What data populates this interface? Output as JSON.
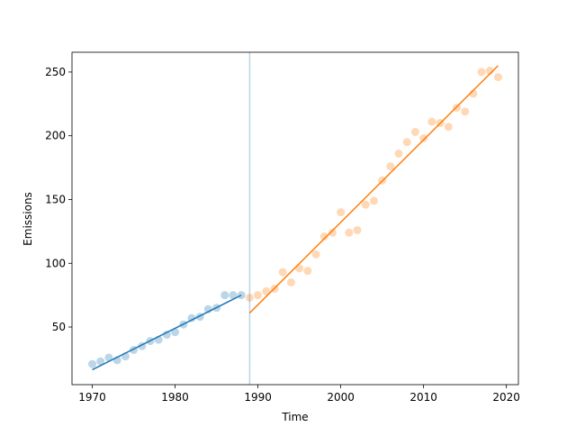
{
  "chart_data": {
    "type": "scatter",
    "xlabel": "Time",
    "ylabel": "Emissions",
    "xlim": [
      1967.55,
      2021.45
    ],
    "ylim": [
      4.8,
      265.5
    ],
    "xticks": [
      1970,
      1980,
      1990,
      2000,
      2010,
      2020
    ],
    "yticks": [
      50,
      100,
      150,
      200,
      250
    ],
    "grid": false,
    "series": [
      {
        "color": "#1f77b4",
        "alpha": 0.3,
        "x": [
          1970,
          1971,
          1972,
          1973,
          1974,
          1975,
          1976,
          1977,
          1978,
          1979,
          1980,
          1981,
          1982,
          1983,
          1984,
          1985,
          1986,
          1987,
          1988
        ],
        "values": [
          21,
          23,
          26,
          24,
          27,
          32,
          35,
          39,
          40,
          44,
          46,
          52,
          57,
          58,
          64,
          65,
          75,
          75,
          75
        ]
      },
      {
        "color": "#ff7f0e",
        "alpha": 0.3,
        "x": [
          1989,
          1990,
          1991,
          1992,
          1993,
          1994,
          1995,
          1996,
          1997,
          1998,
          1999,
          2000,
          2001,
          2002,
          2003,
          2004,
          2005,
          2006,
          2007,
          2008,
          2009,
          2010,
          2011,
          2012,
          2013,
          2014,
          2015,
          2016,
          2017,
          2018,
          2019
        ],
        "values": [
          73,
          75,
          78,
          80,
          93,
          85,
          96,
          94,
          107,
          121,
          124,
          140,
          124,
          126,
          146,
          149,
          165,
          176,
          186,
          195,
          203,
          198,
          211,
          210,
          207,
          222,
          219,
          233,
          250,
          251,
          246
        ]
      }
    ],
    "fit_lines": [
      {
        "color": "#1f77b4",
        "x": [
          1970,
          1988
        ],
        "values": [
          16.5,
          75
        ]
      },
      {
        "color": "#ff7f0e",
        "x": [
          1989,
          2019
        ],
        "values": [
          61,
          255
        ]
      }
    ],
    "vlines": [
      {
        "x": 1989,
        "color": "#1f77b4",
        "alpha": 0.3
      }
    ]
  }
}
